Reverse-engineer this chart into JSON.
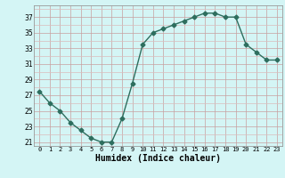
{
  "x": [
    0,
    1,
    2,
    3,
    4,
    5,
    6,
    7,
    8,
    9,
    10,
    11,
    12,
    13,
    14,
    15,
    16,
    17,
    18,
    19,
    20,
    21,
    22,
    23
  ],
  "y": [
    27.5,
    26.0,
    25.0,
    23.5,
    22.5,
    21.5,
    21.0,
    21.0,
    24.0,
    28.5,
    33.5,
    35.0,
    35.5,
    36.0,
    36.5,
    37.0,
    37.5,
    37.5,
    37.0,
    37.0,
    33.5,
    32.5,
    31.5,
    31.5
  ],
  "xlabel": "Humidex (Indice chaleur)",
  "xlim": [
    -0.5,
    23.5
  ],
  "ylim": [
    20.5,
    38.5
  ],
  "yticks": [
    21,
    23,
    25,
    27,
    29,
    31,
    33,
    35,
    37
  ],
  "xticks": [
    0,
    1,
    2,
    3,
    4,
    5,
    6,
    7,
    8,
    9,
    10,
    11,
    12,
    13,
    14,
    15,
    16,
    17,
    18,
    19,
    20,
    21,
    22,
    23
  ],
  "line_color": "#2d6e5e",
  "marker": "D",
  "marker_size": 2.5,
  "bg_color": "#d4f5f5",
  "grid_major_color": "#c8a0a0",
  "grid_minor_color": "#dbbcbc"
}
